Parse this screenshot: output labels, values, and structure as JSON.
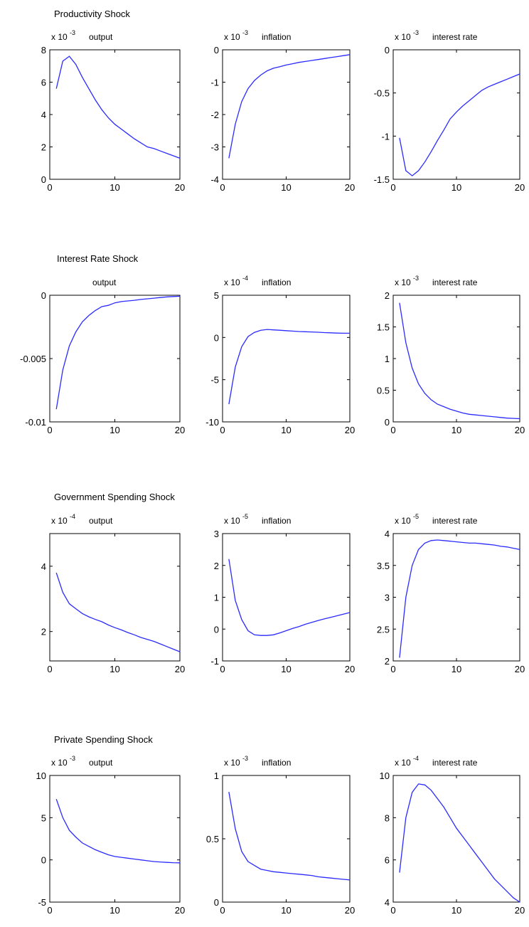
{
  "figure": {
    "row_titles": [
      "Productivity Shock",
      "Interest Rate Shock",
      "Government Spending Shock",
      "Private Spending Shock"
    ],
    "line_color": "#2b2bff"
  },
  "chart_data": [
    {
      "type": "line",
      "shock": "Productivity Shock",
      "title": "output",
      "multiplier": "x 10",
      "exponent": "-3",
      "xlim": [
        0,
        20
      ],
      "ylim": [
        0,
        8
      ],
      "xticks": [
        "0",
        "10",
        "20"
      ],
      "yticks": [
        "0",
        "2",
        "4",
        "6",
        "8"
      ],
      "x": [
        1,
        2,
        3,
        4,
        5,
        6,
        7,
        8,
        9,
        10,
        11,
        12,
        13,
        14,
        15,
        16,
        17,
        18,
        19,
        20
      ],
      "y": [
        5.6,
        7.3,
        7.6,
        7.1,
        6.3,
        5.6,
        4.9,
        4.3,
        3.8,
        3.4,
        3.1,
        2.8,
        2.5,
        2.25,
        2.0,
        1.9,
        1.75,
        1.6,
        1.45,
        1.3
      ]
    },
    {
      "type": "line",
      "shock": "Productivity Shock",
      "title": "inflation",
      "multiplier": "x 10",
      "exponent": "-3",
      "xlim": [
        0,
        20
      ],
      "ylim": [
        -4,
        0
      ],
      "xticks": [
        "0",
        "10",
        "20"
      ],
      "yticks": [
        "-4",
        "-3",
        "-2",
        "-1",
        "0"
      ],
      "x": [
        1,
        2,
        3,
        4,
        5,
        6,
        7,
        8,
        9,
        10,
        11,
        12,
        13,
        14,
        15,
        16,
        17,
        18,
        19,
        20
      ],
      "y": [
        -3.35,
        -2.3,
        -1.6,
        -1.2,
        -0.95,
        -0.78,
        -0.65,
        -0.57,
        -0.52,
        -0.47,
        -0.43,
        -0.39,
        -0.36,
        -0.33,
        -0.3,
        -0.27,
        -0.24,
        -0.21,
        -0.18,
        -0.15
      ]
    },
    {
      "type": "line",
      "shock": "Productivity Shock",
      "title": "interest rate",
      "multiplier": "x 10",
      "exponent": "-3",
      "xlim": [
        0,
        20
      ],
      "ylim": [
        -1.5,
        0
      ],
      "xticks": [
        "0",
        "10",
        "20"
      ],
      "yticks": [
        "-1.5",
        "-1",
        "-0.5",
        "0"
      ],
      "x": [
        1,
        2,
        3,
        4,
        5,
        6,
        7,
        8,
        9,
        10,
        11,
        12,
        13,
        14,
        15,
        16,
        17,
        18,
        19,
        20
      ],
      "y": [
        -1.02,
        -1.4,
        -1.46,
        -1.4,
        -1.3,
        -1.18,
        -1.05,
        -0.93,
        -0.8,
        -0.72,
        -0.65,
        -0.59,
        -0.53,
        -0.47,
        -0.43,
        -0.4,
        -0.37,
        -0.34,
        -0.31,
        -0.28
      ]
    },
    {
      "type": "line",
      "shock": "Interest Rate Shock",
      "title": "output",
      "multiplier": "",
      "exponent": "",
      "xlim": [
        0,
        20
      ],
      "ylim": [
        -0.01,
        0
      ],
      "xticks": [
        "0",
        "10",
        "20"
      ],
      "yticks": [
        "-0.01",
        "-0.005",
        "0"
      ],
      "x": [
        1,
        2,
        3,
        4,
        5,
        6,
        7,
        8,
        9,
        10,
        11,
        12,
        13,
        14,
        15,
        16,
        17,
        18,
        19,
        20
      ],
      "y": [
        -0.009,
        -0.0059,
        -0.004,
        -0.0029,
        -0.0021,
        -0.0016,
        -0.0012,
        -0.0009,
        -0.0008,
        -0.0006,
        -0.0005,
        -0.00045,
        -0.0004,
        -0.00033,
        -0.00028,
        -0.00023,
        -0.00018,
        -0.00013,
        -0.0001,
        -8e-05
      ]
    },
    {
      "type": "line",
      "shock": "Interest Rate Shock",
      "title": "inflation",
      "multiplier": "x 10",
      "exponent": "-4",
      "xlim": [
        0,
        20
      ],
      "ylim": [
        -10,
        5
      ],
      "xticks": [
        "0",
        "10",
        "20"
      ],
      "yticks": [
        "-10",
        "-5",
        "0",
        "5"
      ],
      "x": [
        1,
        2,
        3,
        4,
        5,
        6,
        7,
        8,
        9,
        10,
        11,
        12,
        13,
        14,
        15,
        16,
        17,
        18,
        19,
        20
      ],
      "y": [
        -7.9,
        -3.5,
        -1.1,
        0.1,
        0.6,
        0.85,
        0.95,
        0.9,
        0.85,
        0.8,
        0.75,
        0.7,
        0.68,
        0.65,
        0.62,
        0.58,
        0.55,
        0.52,
        0.5,
        0.5
      ]
    },
    {
      "type": "line",
      "shock": "Interest Rate Shock",
      "title": "interest rate",
      "multiplier": "x 10",
      "exponent": "-3",
      "xlim": [
        0,
        20
      ],
      "ylim": [
        0,
        2
      ],
      "xticks": [
        "0",
        "10",
        "20"
      ],
      "yticks": [
        "0",
        "0.5",
        "1",
        "1.5",
        "2"
      ],
      "x": [
        1,
        2,
        3,
        4,
        5,
        6,
        7,
        8,
        9,
        10,
        11,
        12,
        13,
        14,
        15,
        16,
        17,
        18,
        19,
        20
      ],
      "y": [
        1.88,
        1.25,
        0.85,
        0.6,
        0.45,
        0.35,
        0.28,
        0.24,
        0.2,
        0.17,
        0.14,
        0.12,
        0.11,
        0.1,
        0.09,
        0.08,
        0.07,
        0.06,
        0.055,
        0.05
      ]
    },
    {
      "type": "line",
      "shock": "Government Spending Shock",
      "title": "output",
      "multiplier": "x 10",
      "exponent": "-4",
      "xlim": [
        0,
        20
      ],
      "ylim": [
        1.1,
        5
      ],
      "xticks": [
        "0",
        "10",
        "20"
      ],
      "yticks": [
        "2",
        "4"
      ],
      "x": [
        1,
        2,
        3,
        4,
        5,
        6,
        7,
        8,
        9,
        10,
        11,
        12,
        13,
        14,
        15,
        16,
        17,
        18,
        19,
        20
      ],
      "y": [
        3.8,
        3.2,
        2.85,
        2.7,
        2.55,
        2.45,
        2.37,
        2.3,
        2.2,
        2.12,
        2.05,
        1.97,
        1.9,
        1.82,
        1.76,
        1.7,
        1.62,
        1.54,
        1.46,
        1.38
      ]
    },
    {
      "type": "line",
      "shock": "Government Spending Shock",
      "title": "inflation",
      "multiplier": "x 10",
      "exponent": "-5",
      "xlim": [
        0,
        20
      ],
      "ylim": [
        -1,
        3
      ],
      "xticks": [
        "0",
        "10",
        "20"
      ],
      "yticks": [
        "-1",
        "0",
        "1",
        "2",
        "3"
      ],
      "x": [
        1,
        2,
        3,
        4,
        5,
        6,
        7,
        8,
        9,
        10,
        11,
        12,
        13,
        14,
        15,
        16,
        17,
        18,
        19,
        20
      ],
      "y": [
        2.2,
        0.9,
        0.3,
        -0.05,
        -0.18,
        -0.2,
        -0.2,
        -0.18,
        -0.12,
        -0.05,
        0.02,
        0.08,
        0.15,
        0.21,
        0.27,
        0.32,
        0.37,
        0.42,
        0.47,
        0.52
      ]
    },
    {
      "type": "line",
      "shock": "Government Spending Shock",
      "title": "interest rate",
      "multiplier": "x 10",
      "exponent": "-5",
      "xlim": [
        0,
        20
      ],
      "ylim": [
        2,
        4
      ],
      "xticks": [
        "0",
        "10",
        "20"
      ],
      "yticks": [
        "2",
        "2.5",
        "3",
        "3.5",
        "4"
      ],
      "x": [
        1,
        2,
        3,
        4,
        5,
        6,
        7,
        8,
        9,
        10,
        11,
        12,
        13,
        14,
        15,
        16,
        17,
        18,
        19,
        20
      ],
      "y": [
        2.05,
        3.0,
        3.5,
        3.75,
        3.85,
        3.89,
        3.9,
        3.89,
        3.88,
        3.87,
        3.86,
        3.85,
        3.85,
        3.84,
        3.83,
        3.82,
        3.8,
        3.79,
        3.77,
        3.75
      ]
    },
    {
      "type": "line",
      "shock": "Private Spending Shock",
      "title": "output",
      "multiplier": "x 10",
      "exponent": "-3",
      "xlim": [
        0,
        20
      ],
      "ylim": [
        -5,
        10
      ],
      "xticks": [
        "0",
        "10",
        "20"
      ],
      "yticks": [
        "-5",
        "0",
        "5",
        "10"
      ],
      "x": [
        1,
        2,
        3,
        4,
        5,
        6,
        7,
        8,
        9,
        10,
        11,
        12,
        13,
        14,
        15,
        16,
        17,
        18,
        19,
        20
      ],
      "y": [
        7.2,
        5.0,
        3.5,
        2.7,
        2.0,
        1.6,
        1.2,
        0.9,
        0.6,
        0.4,
        0.3,
        0.2,
        0.1,
        0.0,
        -0.1,
        -0.2,
        -0.25,
        -0.3,
        -0.33,
        -0.35
      ]
    },
    {
      "type": "line",
      "shock": "Private Spending Shock",
      "title": "inflation",
      "multiplier": "x 10",
      "exponent": "-3",
      "xlim": [
        0,
        20
      ],
      "ylim": [
        0,
        1
      ],
      "xticks": [
        "0",
        "10",
        "20"
      ],
      "yticks": [
        "0",
        "0.5",
        "1"
      ],
      "x": [
        1,
        2,
        3,
        4,
        5,
        6,
        7,
        8,
        9,
        10,
        11,
        12,
        13,
        14,
        15,
        16,
        17,
        18,
        19,
        20
      ],
      "y": [
        0.87,
        0.58,
        0.4,
        0.32,
        0.29,
        0.26,
        0.25,
        0.24,
        0.235,
        0.23,
        0.225,
        0.22,
        0.215,
        0.21,
        0.2,
        0.195,
        0.19,
        0.185,
        0.18,
        0.175
      ]
    },
    {
      "type": "line",
      "shock": "Private Spending Shock",
      "title": "interest rate",
      "multiplier": "x 10",
      "exponent": "-4",
      "xlim": [
        0,
        20
      ],
      "ylim": [
        4,
        10
      ],
      "xticks": [
        "0",
        "10",
        "20"
      ],
      "yticks": [
        "4",
        "6",
        "8",
        "10"
      ],
      "x": [
        1,
        2,
        3,
        4,
        5,
        6,
        7,
        8,
        9,
        10,
        11,
        12,
        13,
        14,
        15,
        16,
        17,
        18,
        19,
        20
      ],
      "y": [
        5.4,
        8.0,
        9.2,
        9.6,
        9.55,
        9.3,
        8.9,
        8.5,
        8.0,
        7.5,
        7.1,
        6.7,
        6.3,
        5.9,
        5.5,
        5.1,
        4.8,
        4.5,
        4.2,
        4.0
      ]
    }
  ]
}
